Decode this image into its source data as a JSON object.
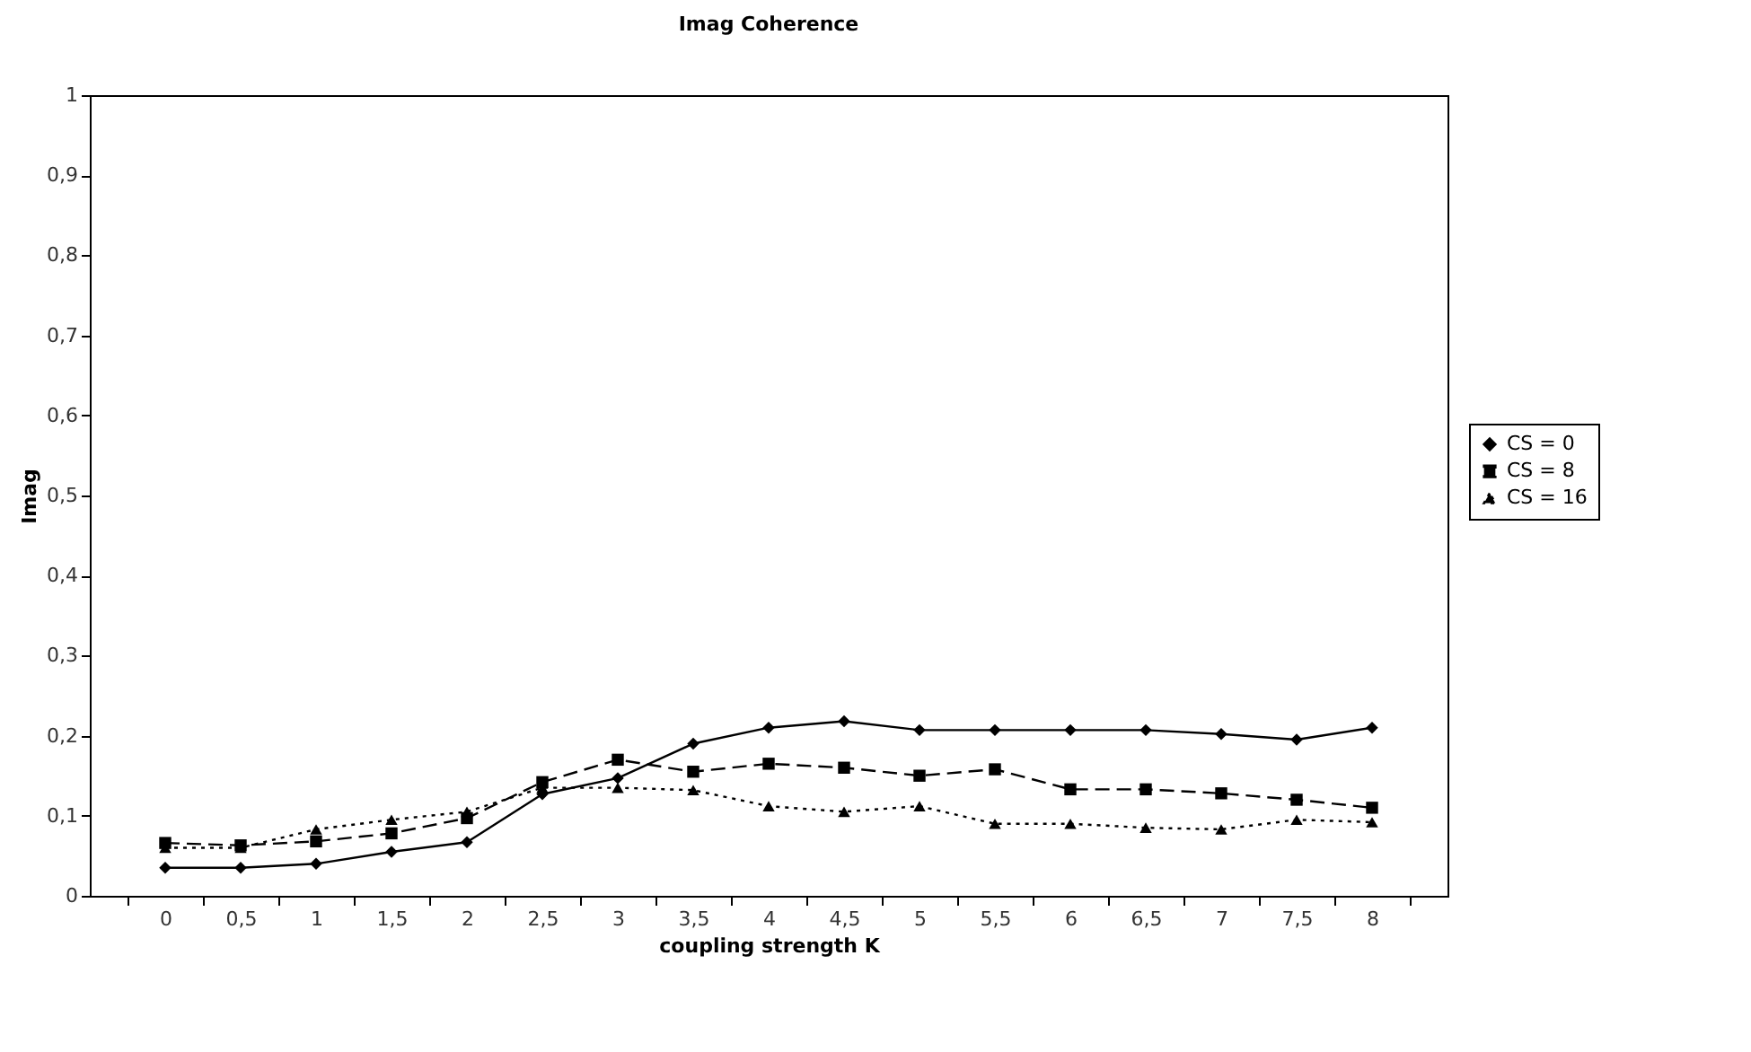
{
  "chart_data": {
    "type": "line",
    "title": "Imag Coherence",
    "xlabel": "coupling strength K",
    "ylabel": "Imag",
    "categories": [
      "0",
      "0,5",
      "1",
      "1,5",
      "2",
      "2,5",
      "3",
      "3,5",
      "4",
      "4,5",
      "5",
      "5,5",
      "6",
      "6,5",
      "7",
      "7,5",
      "8"
    ],
    "series": [
      {
        "name": "CS = 0",
        "color": "#000000",
        "marker": "diamond",
        "line_style": "solid",
        "values": [
          0.035,
          0.035,
          0.04,
          0.055,
          0.067,
          0.127,
          0.147,
          0.19,
          0.21,
          0.218,
          0.207,
          0.207,
          0.207,
          0.207,
          0.202,
          0.195,
          0.21
        ]
      },
      {
        "name": "CS = 8",
        "color": "#000000",
        "marker": "square",
        "line_style": "dashed",
        "values": [
          0.066,
          0.063,
          0.068,
          0.078,
          0.097,
          0.142,
          0.17,
          0.155,
          0.165,
          0.16,
          0.15,
          0.158,
          0.133,
          0.133,
          0.128,
          0.12,
          0.11
        ]
      },
      {
        "name": "CS = 16",
        "color": "#000000",
        "marker": "triangle",
        "line_style": "dotted",
        "values": [
          0.06,
          0.06,
          0.083,
          0.095,
          0.105,
          0.135,
          0.135,
          0.132,
          0.112,
          0.105,
          0.112,
          0.09,
          0.09,
          0.085,
          0.083,
          0.095,
          0.092
        ]
      }
    ],
    "ylim": [
      0,
      1
    ],
    "yticks": [
      0,
      {
        "value": 0.1,
        "label": "0,1"
      },
      {
        "value": 0.2,
        "label": "0,2"
      },
      {
        "value": 0.3,
        "label": "0,3"
      },
      {
        "value": 0.4,
        "label": "0,4"
      },
      {
        "value": 0.5,
        "label": "0,5"
      },
      {
        "value": 0.6,
        "label": "0,6"
      },
      {
        "value": 0.7,
        "label": "0,7"
      },
      {
        "value": 0.8,
        "label": "0,8"
      },
      {
        "value": 0.9,
        "label": "0,9"
      },
      1
    ],
    "grid": false,
    "legend": "right"
  }
}
